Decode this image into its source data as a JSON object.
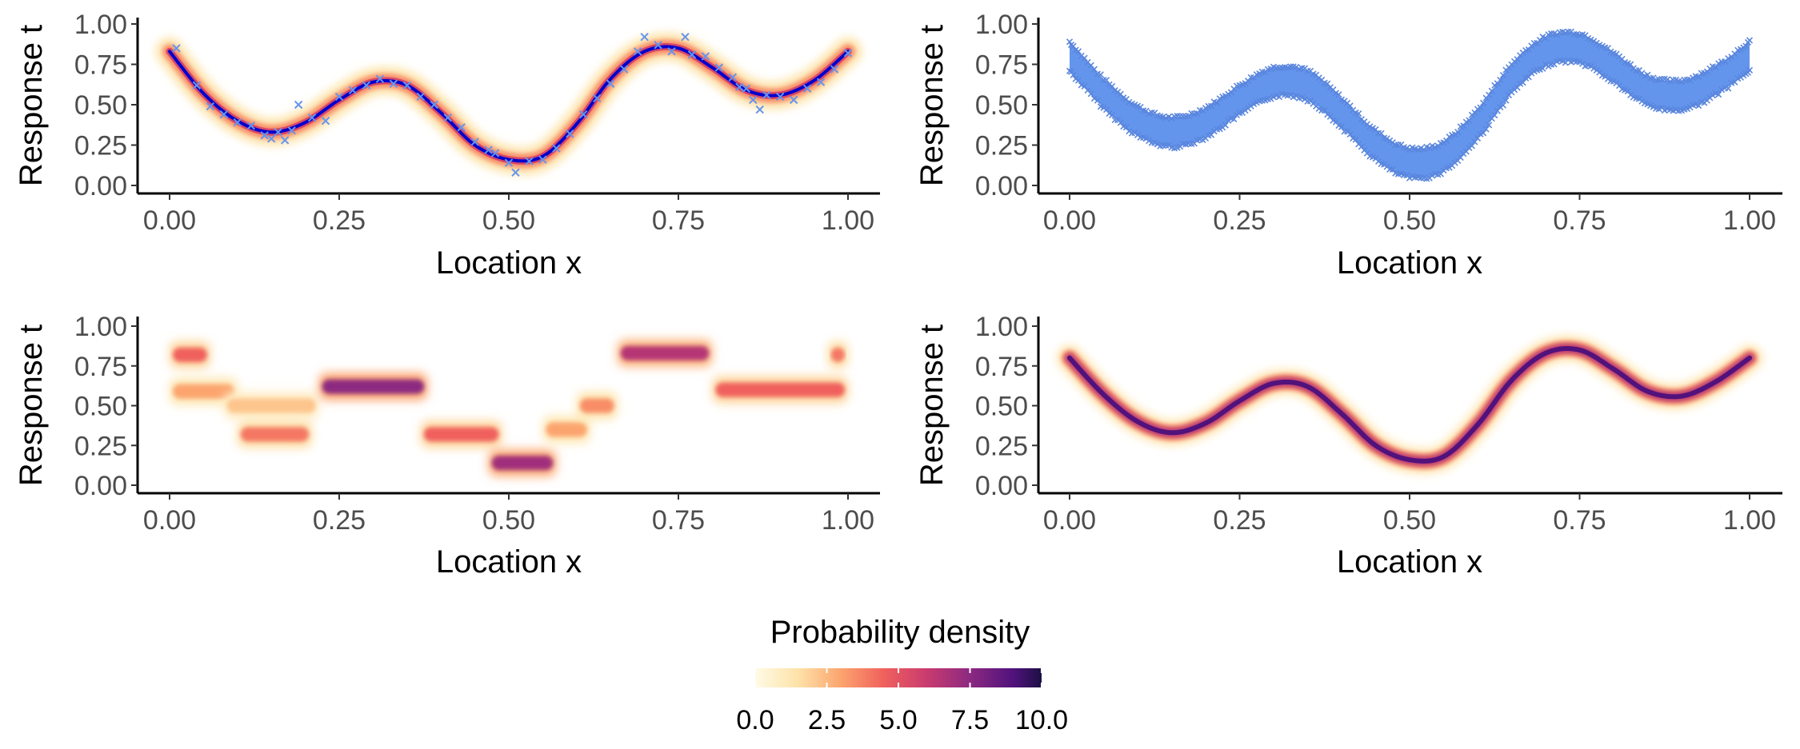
{
  "chart_data": [
    {
      "type": "heatmap",
      "panel": "top-left",
      "layers": [
        "density",
        "mean-line",
        "scatter"
      ],
      "title": "",
      "xlabel": "Location x",
      "ylabel": "Response t",
      "xlim": [
        0,
        1
      ],
      "ylim": [
        0,
        1
      ],
      "x_ticks": [
        "0.00",
        "0.25",
        "0.50",
        "0.75",
        "1.00"
      ],
      "y_ticks": [
        "0.00",
        "0.25",
        "0.50",
        "0.75",
        "1.00"
      ],
      "curve": {
        "x": [
          0,
          0.05,
          0.1,
          0.15,
          0.2,
          0.25,
          0.3,
          0.35,
          0.4,
          0.45,
          0.5,
          0.55,
          0.6,
          0.65,
          0.7,
          0.75,
          0.8,
          0.85,
          0.9,
          0.95,
          1.0
        ],
        "t": [
          0.83,
          0.57,
          0.4,
          0.33,
          0.39,
          0.53,
          0.64,
          0.62,
          0.45,
          0.25,
          0.16,
          0.18,
          0.38,
          0.66,
          0.83,
          0.85,
          0.73,
          0.59,
          0.56,
          0.65,
          0.83
        ]
      },
      "scatter": {
        "x": [
          0.01,
          0.04,
          0.06,
          0.08,
          0.1,
          0.12,
          0.14,
          0.15,
          0.16,
          0.17,
          0.18,
          0.19,
          0.21,
          0.23,
          0.25,
          0.27,
          0.29,
          0.31,
          0.33,
          0.35,
          0.37,
          0.39,
          0.41,
          0.43,
          0.45,
          0.47,
          0.48,
          0.5,
          0.51,
          0.53,
          0.55,
          0.57,
          0.59,
          0.61,
          0.63,
          0.65,
          0.67,
          0.69,
          0.7,
          0.72,
          0.74,
          0.76,
          0.77,
          0.79,
          0.81,
          0.83,
          0.84,
          0.85,
          0.86,
          0.87,
          0.88,
          0.9,
          0.92,
          0.94,
          0.96,
          0.98,
          1.0
        ],
        "t": [
          0.85,
          0.62,
          0.49,
          0.44,
          0.39,
          0.37,
          0.31,
          0.29,
          0.33,
          0.28,
          0.34,
          0.5,
          0.42,
          0.4,
          0.55,
          0.59,
          0.62,
          0.66,
          0.63,
          0.62,
          0.55,
          0.5,
          0.42,
          0.36,
          0.27,
          0.22,
          0.2,
          0.14,
          0.08,
          0.15,
          0.16,
          0.23,
          0.32,
          0.44,
          0.54,
          0.63,
          0.72,
          0.83,
          0.92,
          0.87,
          0.83,
          0.92,
          0.81,
          0.8,
          0.73,
          0.67,
          0.61,
          0.6,
          0.53,
          0.47,
          0.56,
          0.55,
          0.53,
          0.6,
          0.64,
          0.72,
          0.82
        ]
      }
    },
    {
      "type": "scatter",
      "panel": "top-right",
      "marker": "x",
      "color": "#6495ED",
      "title": "",
      "xlabel": "Location x",
      "ylabel": "Response t",
      "xlim": [
        0,
        1
      ],
      "ylim": [
        0,
        1
      ],
      "x_ticks": [
        "0.00",
        "0.25",
        "0.50",
        "0.75",
        "1.00"
      ],
      "y_ticks": [
        "0.00",
        "0.25",
        "0.50",
        "0.75",
        "1.00"
      ],
      "band_center": {
        "x": [
          0,
          0.05,
          0.1,
          0.15,
          0.2,
          0.25,
          0.3,
          0.35,
          0.4,
          0.45,
          0.5,
          0.55,
          0.6,
          0.65,
          0.7,
          0.75,
          0.8,
          0.85,
          0.9,
          0.95,
          1.0
        ],
        "t": [
          0.8,
          0.57,
          0.4,
          0.33,
          0.39,
          0.53,
          0.64,
          0.62,
          0.45,
          0.25,
          0.14,
          0.18,
          0.38,
          0.66,
          0.83,
          0.85,
          0.73,
          0.59,
          0.56,
          0.65,
          0.8
        ]
      },
      "band_half_width": 0.09
    },
    {
      "type": "heatmap",
      "panel": "bottom-left",
      "title": "",
      "xlabel": "Location x",
      "ylabel": "Response t",
      "xlim": [
        0,
        1
      ],
      "ylim": [
        0,
        1
      ],
      "x_ticks": [
        "0.00",
        "0.25",
        "0.50",
        "0.75",
        "1.00"
      ],
      "y_ticks": [
        "0.00",
        "0.25",
        "0.50",
        "0.75",
        "1.00"
      ],
      "blobs": [
        {
          "x": [
            0.0,
            0.06
          ],
          "t": 0.82,
          "density": 4.5
        },
        {
          "x": [
            0.0,
            0.1
          ],
          "t": 0.59,
          "density": 3.0
        },
        {
          "x": [
            0.08,
            0.22
          ],
          "t": 0.5,
          "density": 2.2
        },
        {
          "x": [
            0.1,
            0.21
          ],
          "t": 0.32,
          "density": 4.0
        },
        {
          "x": [
            0.22,
            0.38
          ],
          "t": 0.62,
          "density": 7.5
        },
        {
          "x": [
            0.37,
            0.49
          ],
          "t": 0.32,
          "density": 4.5
        },
        {
          "x": [
            0.47,
            0.57
          ],
          "t": 0.14,
          "density": 7.0
        },
        {
          "x": [
            0.55,
            0.62
          ],
          "t": 0.35,
          "density": 3.0
        },
        {
          "x": [
            0.6,
            0.66
          ],
          "t": 0.5,
          "density": 3.5
        },
        {
          "x": [
            0.66,
            0.8
          ],
          "t": 0.83,
          "density": 6.5
        },
        {
          "x": [
            0.8,
            1.0
          ],
          "t": 0.6,
          "density": 4.5
        },
        {
          "x": [
            0.97,
            1.0
          ],
          "t": 0.82,
          "density": 4.0
        }
      ]
    },
    {
      "type": "heatmap",
      "panel": "bottom-right",
      "title": "",
      "xlabel": "Location x",
      "ylabel": "Response t",
      "xlim": [
        0,
        1
      ],
      "ylim": [
        0,
        1
      ],
      "x_ticks": [
        "0.00",
        "0.25",
        "0.50",
        "0.75",
        "1.00"
      ],
      "y_ticks": [
        "0.00",
        "0.25",
        "0.50",
        "0.75",
        "1.00"
      ],
      "curve": {
        "x": [
          0,
          0.05,
          0.1,
          0.15,
          0.2,
          0.25,
          0.3,
          0.35,
          0.4,
          0.45,
          0.5,
          0.55,
          0.6,
          0.65,
          0.7,
          0.75,
          0.8,
          0.85,
          0.9,
          0.95,
          1.0
        ],
        "t": [
          0.8,
          0.57,
          0.4,
          0.33,
          0.39,
          0.53,
          0.64,
          0.62,
          0.45,
          0.25,
          0.16,
          0.18,
          0.38,
          0.66,
          0.83,
          0.85,
          0.73,
          0.59,
          0.56,
          0.65,
          0.8
        ]
      },
      "peak_density": 9.0
    }
  ],
  "legend": {
    "title": "Probability density",
    "min": 0,
    "max": 10,
    "ticks": [
      "0.0",
      "2.5",
      "5.0",
      "7.5",
      "10.0"
    ],
    "tick_values": [
      0,
      2.5,
      5.0,
      7.5,
      10.0
    ],
    "colormap": "magma-reversed",
    "position": "bottom-center"
  },
  "colors": {
    "mean_line": "#0000CD",
    "scatter": "#6495ED",
    "axis": "#000000",
    "tick_text": "#4d4d4d"
  }
}
